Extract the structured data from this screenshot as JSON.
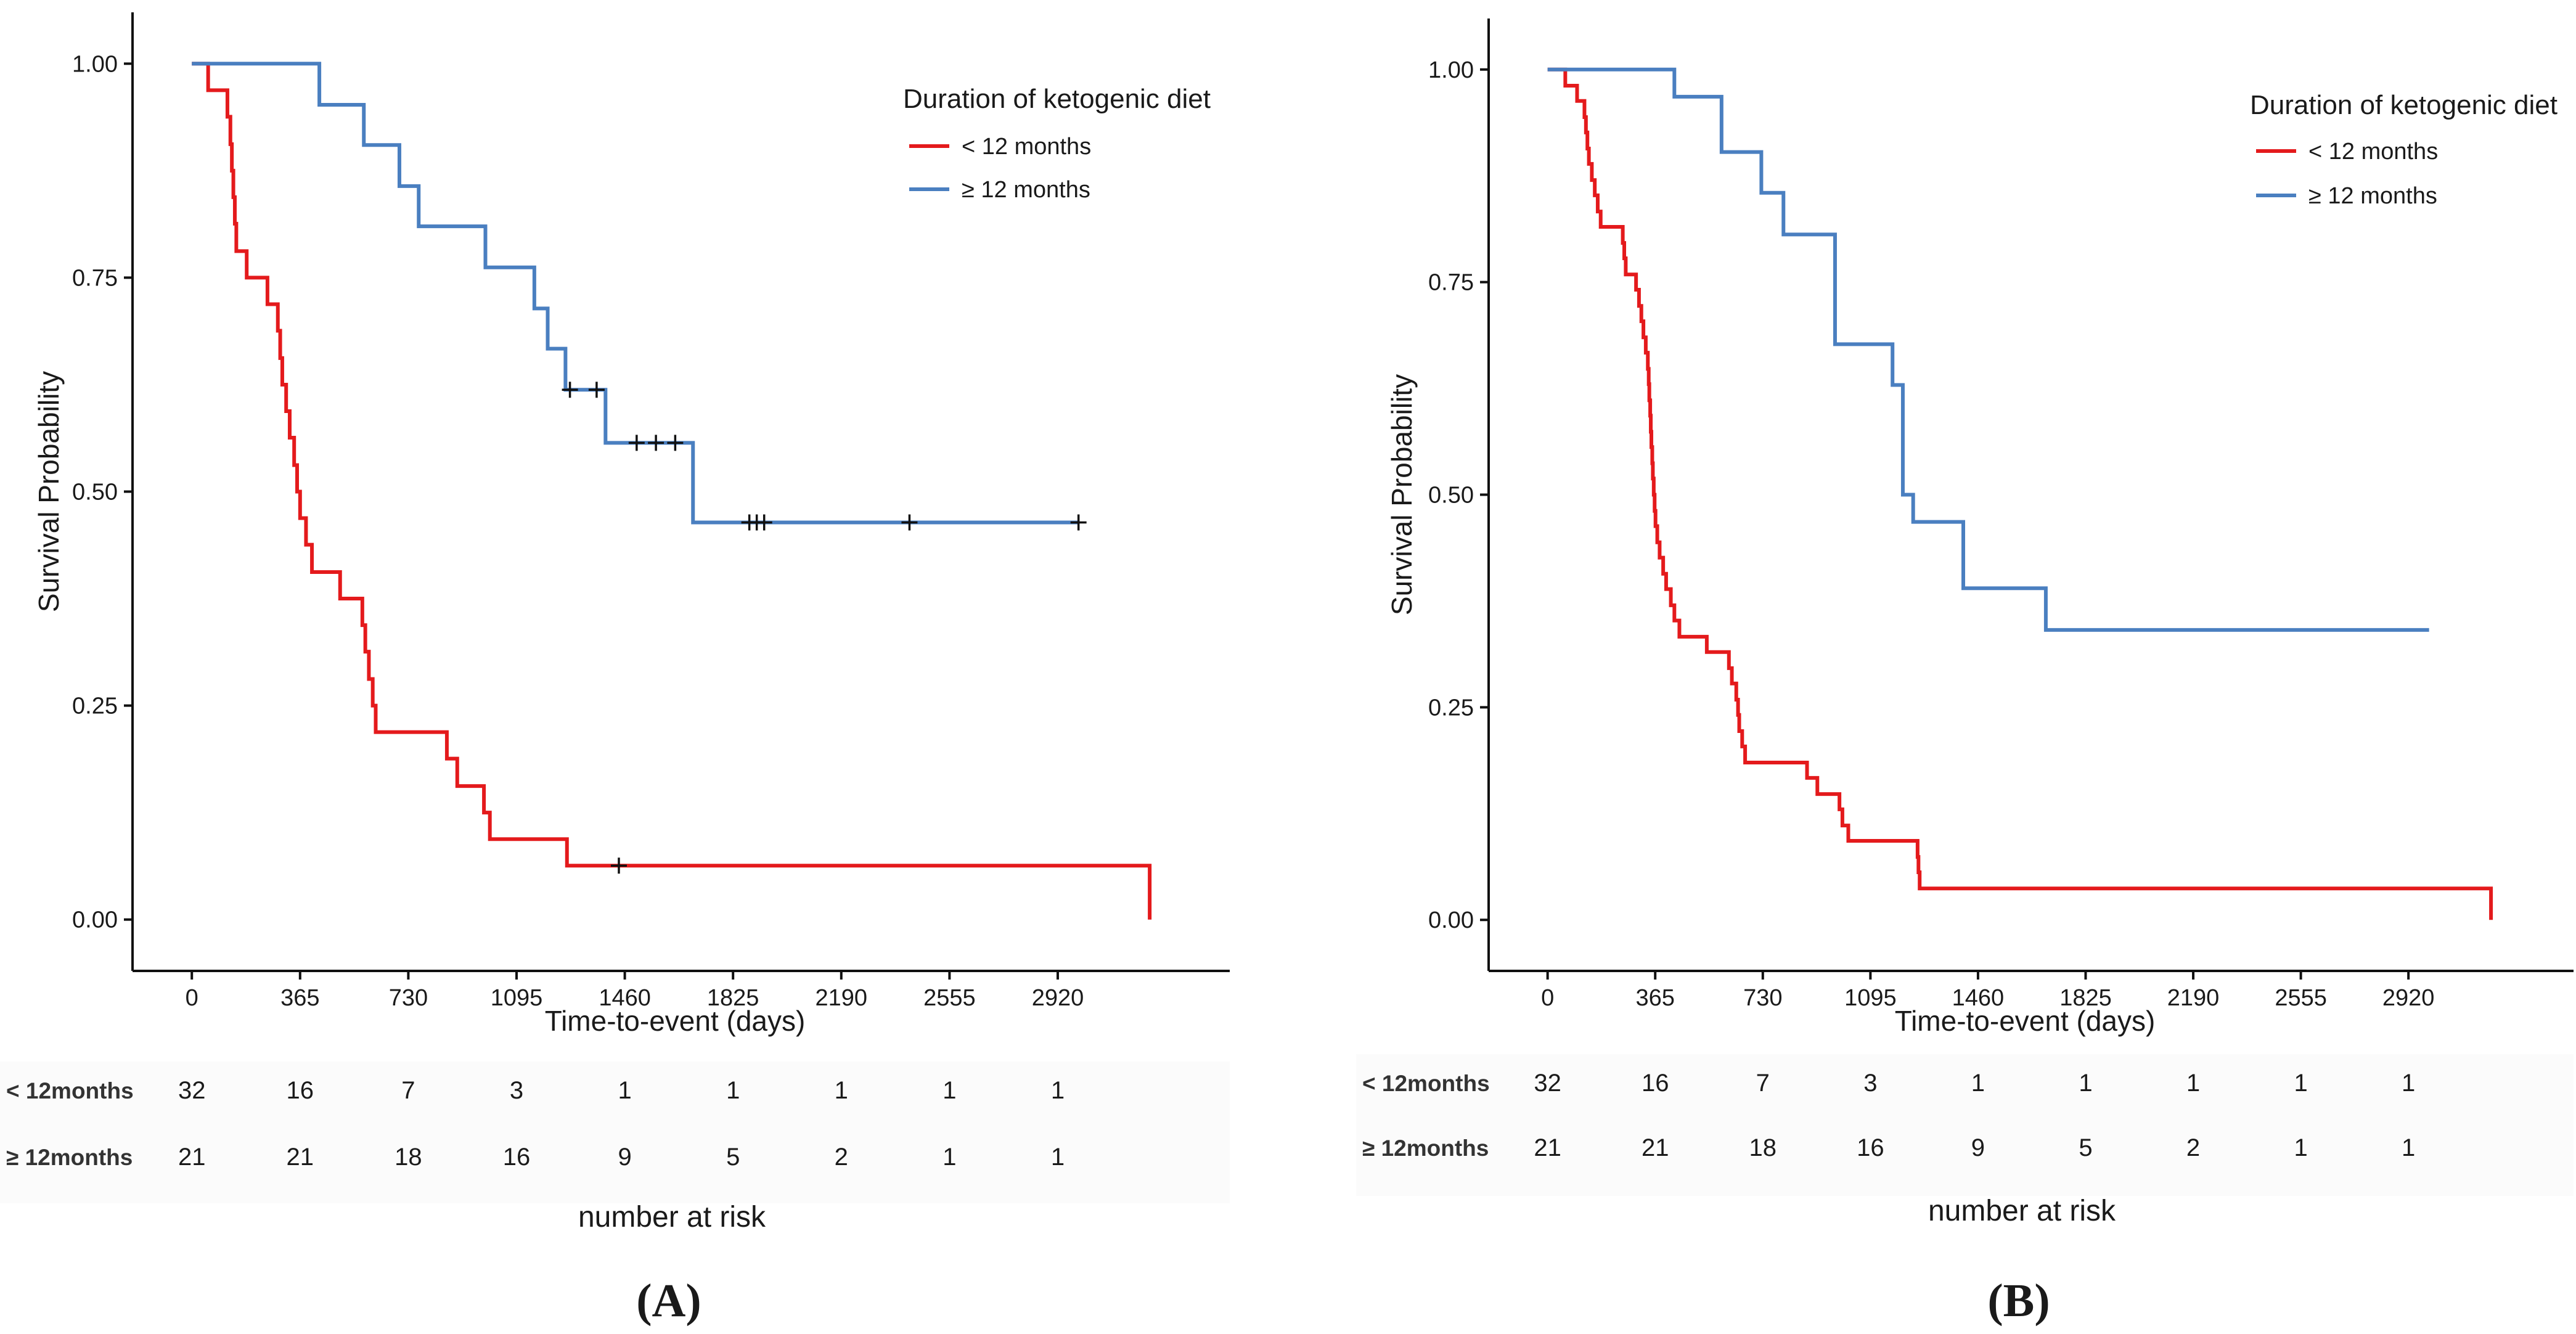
{
  "chart_data": [
    {
      "type": "line",
      "panel_label": "(A)",
      "xlabel": "Time-to-event (days)",
      "ylabel": "Survival Probability",
      "xlim": [
        -200,
        3500
      ],
      "ylim": [
        -0.06,
        1.06
      ],
      "x_ticks": [
        0,
        365,
        730,
        1095,
        1460,
        1825,
        2190,
        2555,
        2920
      ],
      "y_ticks": [
        0.0,
        0.25,
        0.5,
        0.75,
        1.0
      ],
      "y_tick_labels": [
        "0.00",
        "0.25",
        "0.50",
        "0.75",
        "1.00"
      ],
      "grid": false,
      "legend": {
        "title": "Duration of ketogenic diet",
        "position": "top-right",
        "entries": [
          "< 12 months",
          "≥ 12 months"
        ]
      },
      "series": [
        {
          "name": "< 12 months",
          "color": "#e41a1c",
          "steps": [
            [
              0,
              1.0
            ],
            [
              55,
              0.969
            ],
            [
              120,
              0.938
            ],
            [
              130,
              0.906
            ],
            [
              135,
              0.875
            ],
            [
              140,
              0.844
            ],
            [
              145,
              0.813
            ],
            [
              150,
              0.781
            ],
            [
              185,
              0.75
            ],
            [
              255,
              0.719
            ],
            [
              290,
              0.688
            ],
            [
              298,
              0.656
            ],
            [
              305,
              0.625
            ],
            [
              318,
              0.594
            ],
            [
              330,
              0.563
            ],
            [
              345,
              0.531
            ],
            [
              355,
              0.5
            ],
            [
              365,
              0.469
            ],
            [
              385,
              0.438
            ],
            [
              405,
              0.406
            ],
            [
              500,
              0.375
            ],
            [
              575,
              0.344
            ],
            [
              585,
              0.313
            ],
            [
              597,
              0.281
            ],
            [
              610,
              0.25
            ],
            [
              620,
              0.219
            ],
            [
              860,
              0.188
            ],
            [
              895,
              0.156
            ],
            [
              985,
              0.125
            ],
            [
              1005,
              0.094
            ],
            [
              1265,
              0.063
            ],
            [
              3230,
              0.063
            ],
            [
              3230,
              0.0
            ]
          ],
          "censored": [
            [
              1440,
              0.063
            ]
          ]
        },
        {
          "name": "≥ 12 months",
          "color": "#4a7fc0",
          "steps": [
            [
              0,
              1.0
            ],
            [
              430,
              0.952
            ],
            [
              580,
              0.905
            ],
            [
              700,
              0.857
            ],
            [
              765,
              0.81
            ],
            [
              990,
              0.762
            ],
            [
              1155,
              0.714
            ],
            [
              1200,
              0.667
            ],
            [
              1260,
              0.619
            ],
            [
              1395,
              0.557
            ],
            [
              1690,
              0.464
            ],
            [
              2990,
              0.464
            ]
          ],
          "censored": [
            [
              1275,
              0.619
            ],
            [
              1365,
              0.619
            ],
            [
              1500,
              0.557
            ],
            [
              1565,
              0.557
            ],
            [
              1630,
              0.557
            ],
            [
              1880,
              0.464
            ],
            [
              1905,
              0.464
            ],
            [
              1930,
              0.464
            ],
            [
              2420,
              0.464
            ],
            [
              2990,
              0.464
            ]
          ]
        }
      ],
      "risk_table": {
        "title": "number at risk",
        "rows": [
          {
            "label": "< 12months",
            "values": [
              "32",
              "16",
              "7",
              "3",
              "1",
              "1",
              "1",
              "1",
              "1"
            ]
          },
          {
            "label": "≥ 12months",
            "values": [
              "21",
              "21",
              "18",
              "16",
              "9",
              "5",
              "2",
              "1",
              "1"
            ]
          }
        ]
      }
    },
    {
      "type": "line",
      "panel_label": "(B)",
      "xlabel": "Time-to-event (days)",
      "ylabel": "Survival Probability",
      "xlim": [
        -200,
        3480
      ],
      "ylim": [
        -0.06,
        1.06
      ],
      "x_ticks": [
        0,
        365,
        730,
        1095,
        1460,
        1825,
        2190,
        2555,
        2920
      ],
      "y_ticks": [
        0.0,
        0.25,
        0.5,
        0.75,
        1.0
      ],
      "y_tick_labels": [
        "0.00",
        "0.25",
        "0.50",
        "0.75",
        "1.00"
      ],
      "grid": false,
      "legend": {
        "title": "Duration of ketogenic diet",
        "position": "top-right",
        "entries": [
          "< 12 months",
          "≥ 12 months"
        ]
      },
      "series": [
        {
          "name": "< 12 months",
          "color": "#e41a1c",
          "steps": [
            [
              0,
              1.0
            ],
            [
              60,
              0.981
            ],
            [
              100,
              0.963
            ],
            [
              125,
              0.944
            ],
            [
              130,
              0.926
            ],
            [
              135,
              0.907
            ],
            [
              140,
              0.889
            ],
            [
              150,
              0.87
            ],
            [
              160,
              0.852
            ],
            [
              170,
              0.833
            ],
            [
              180,
              0.815
            ],
            [
              255,
              0.796
            ],
            [
              260,
              0.778
            ],
            [
              265,
              0.759
            ],
            [
              300,
              0.741
            ],
            [
              310,
              0.722
            ],
            [
              318,
              0.704
            ],
            [
              325,
              0.685
            ],
            [
              333,
              0.667
            ],
            [
              340,
              0.648
            ],
            [
              343,
              0.63
            ],
            [
              345,
              0.611
            ],
            [
              348,
              0.593
            ],
            [
              350,
              0.574
            ],
            [
              352,
              0.556
            ],
            [
              355,
              0.537
            ],
            [
              357,
              0.519
            ],
            [
              360,
              0.5
            ],
            [
              363,
              0.481
            ],
            [
              366,
              0.463
            ],
            [
              372,
              0.444
            ],
            [
              380,
              0.426
            ],
            [
              392,
              0.407
            ],
            [
              402,
              0.389
            ],
            [
              418,
              0.37
            ],
            [
              430,
              0.352
            ],
            [
              447,
              0.333
            ],
            [
              540,
              0.315
            ],
            [
              615,
              0.296
            ],
            [
              625,
              0.278
            ],
            [
              640,
              0.259
            ],
            [
              646,
              0.241
            ],
            [
              650,
              0.222
            ],
            [
              660,
              0.204
            ],
            [
              670,
              0.185
            ],
            [
              880,
              0.167
            ],
            [
              915,
              0.148
            ],
            [
              990,
              0.13
            ],
            [
              1000,
              0.111
            ],
            [
              1020,
              0.093
            ],
            [
              1255,
              0.074
            ],
            [
              1258,
              0.056
            ],
            [
              1262,
              0.037
            ],
            [
              3200,
              0.037
            ],
            [
              3200,
              0.0
            ]
          ],
          "censored": []
        },
        {
          "name": "≥ 12 months",
          "color": "#4a7fc0",
          "steps": [
            [
              0,
              1.0
            ],
            [
              430,
              0.968
            ],
            [
              590,
              0.903
            ],
            [
              725,
              0.855
            ],
            [
              800,
              0.806
            ],
            [
              975,
              0.677
            ],
            [
              1170,
              0.629
            ],
            [
              1205,
              0.5
            ],
            [
              1240,
              0.468
            ],
            [
              1410,
              0.39
            ],
            [
              1690,
              0.341
            ],
            [
              2990,
              0.341
            ]
          ],
          "censored": []
        }
      ],
      "risk_table": {
        "title": "number at risk",
        "rows": [
          {
            "label": "< 12months",
            "values": [
              "32",
              "16",
              "7",
              "3",
              "1",
              "1",
              "1",
              "1",
              "1"
            ]
          },
          {
            "label": "≥ 12months",
            "values": [
              "21",
              "21",
              "18",
              "16",
              "9",
              "5",
              "2",
              "1",
              "1"
            ]
          }
        ]
      }
    }
  ]
}
